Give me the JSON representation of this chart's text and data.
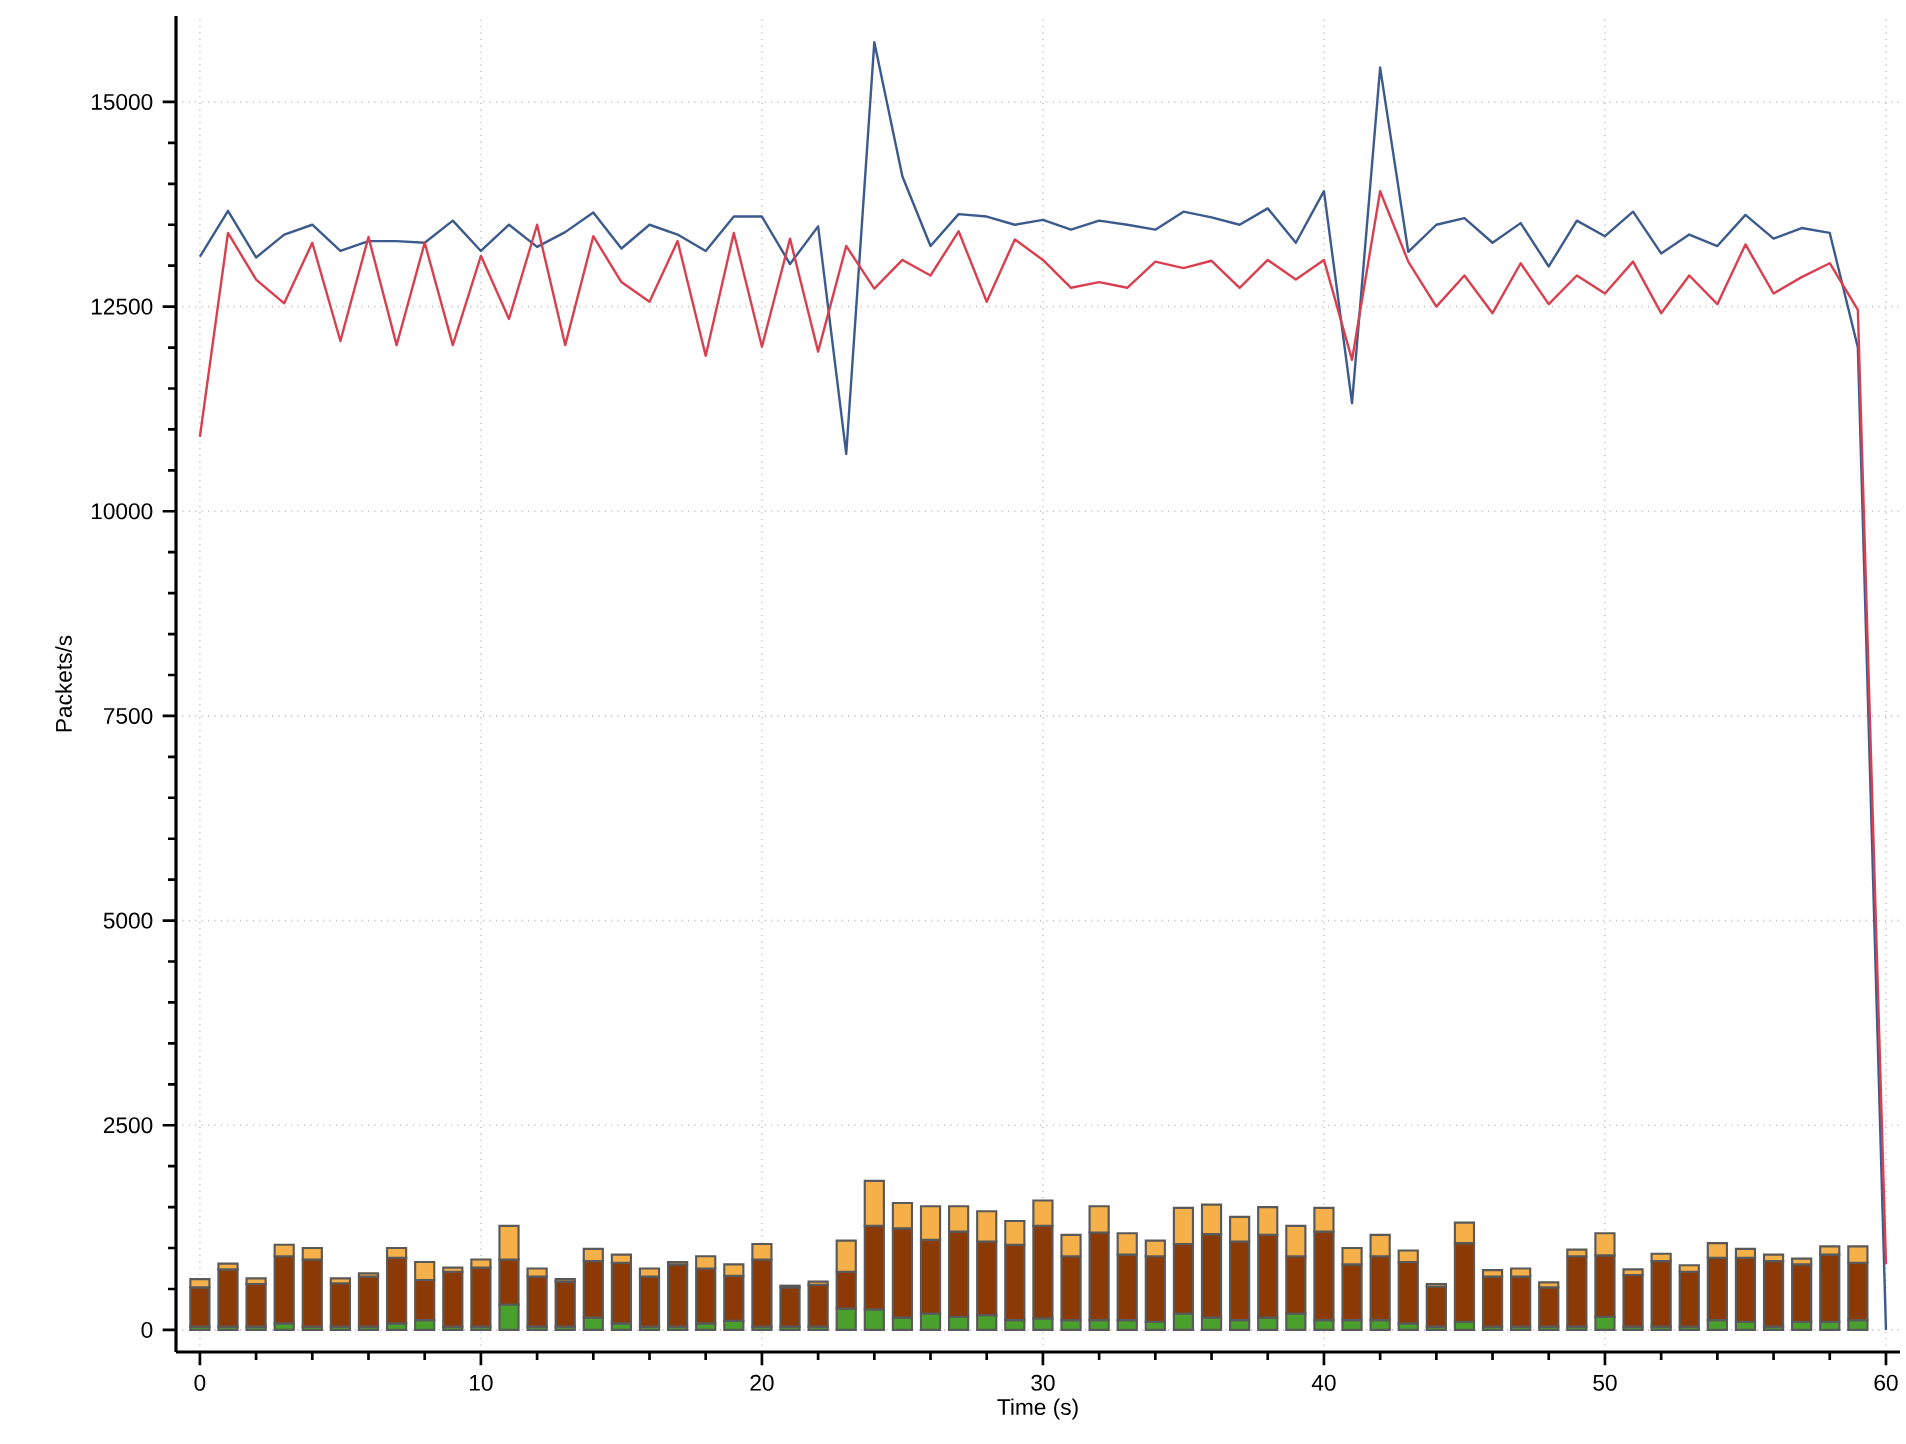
{
  "chart_data": {
    "type": "bar",
    "stacked": true,
    "xlabel": "Time (s)",
    "ylabel": "Packets/s",
    "grid": true,
    "legend": false,
    "marker": "none",
    "xlim": [
      -0.85,
      60.5
    ],
    "ylim": [
      -270,
      16050
    ],
    "xticks": [
      0,
      10,
      20,
      30,
      40,
      50,
      60
    ],
    "yticks": [
      0,
      2500,
      5000,
      7500,
      10000,
      12500,
      15000
    ],
    "x": [
      0,
      1,
      2,
      3,
      4,
      5,
      6,
      7,
      8,
      9,
      10,
      11,
      12,
      13,
      14,
      15,
      16,
      17,
      18,
      19,
      20,
      21,
      22,
      23,
      24,
      25,
      26,
      27,
      28,
      29,
      30,
      31,
      32,
      33,
      34,
      35,
      36,
      37,
      38,
      39,
      40,
      41,
      42,
      43,
      44,
      45,
      46,
      47,
      48,
      49,
      50,
      51,
      52,
      53,
      54,
      55,
      56,
      57,
      58,
      59
    ],
    "series": [
      {
        "color": "#4aa02c",
        "values": [
          40,
          40,
          40,
          80,
          40,
          40,
          40,
          80,
          120,
          40,
          40,
          310,
          40,
          40,
          150,
          80,
          40,
          40,
          80,
          110,
          40,
          40,
          40,
          260,
          250,
          150,
          200,
          160,
          180,
          120,
          140,
          120,
          120,
          120,
          100,
          200,
          150,
          120,
          150,
          200,
          120,
          120,
          120,
          80,
          40,
          100,
          40,
          40,
          40,
          40,
          160,
          40,
          40,
          40,
          120,
          100,
          40,
          100,
          100,
          120
        ]
      },
      {
        "color": "#8b3a06",
        "values": [
          480,
          700,
          520,
          820,
          820,
          530,
          610,
          800,
          490,
          670,
          720,
          550,
          610,
          550,
          690,
          740,
          610,
          760,
          670,
          550,
          820,
          480,
          510,
          450,
          1020,
          1090,
          900,
          1040,
          900,
          920,
          1130,
          780,
          1070,
          800,
          800,
          850,
          1020,
          960,
          1010,
          700,
          1080,
          680,
          780,
          750,
          490,
          960,
          610,
          610,
          480,
          860,
          750,
          630,
          800,
          670,
          760,
          780,
          800,
          700,
          820,
          700
        ]
      },
      {
        "color": "#f5b04a",
        "values": [
          100,
          70,
          70,
          140,
          140,
          60,
          40,
          120,
          220,
          50,
          100,
          410,
          100,
          30,
          150,
          100,
          100,
          30,
          150,
          140,
          190,
          20,
          40,
          380,
          550,
          310,
          410,
          310,
          370,
          290,
          310,
          260,
          320,
          260,
          190,
          440,
          360,
          300,
          340,
          370,
          290,
          200,
          260,
          140,
          30,
          250,
          80,
          100,
          60,
          80,
          270,
          70,
          90,
          80,
          180,
          110,
          80,
          70,
          100,
          200
        ]
      },
      {
        "type": "line",
        "color": "#3c5a8c",
        "x": [
          0,
          1,
          2,
          3,
          4,
          5,
          6,
          7,
          8,
          9,
          10,
          11,
          12,
          13,
          14,
          15,
          16,
          17,
          18,
          19,
          20,
          21,
          22,
          23,
          24,
          25,
          26,
          27,
          28,
          29,
          30,
          31,
          32,
          33,
          34,
          35,
          36,
          37,
          38,
          39,
          40,
          41,
          42,
          43,
          44,
          45,
          46,
          47,
          48,
          49,
          50,
          51,
          52,
          53,
          54,
          55,
          56,
          57,
          58,
          59,
          60
        ],
        "values": [
          13110,
          13670,
          13100,
          13380,
          13500,
          13180,
          13300,
          13300,
          13280,
          13550,
          13180,
          13500,
          13230,
          13410,
          13650,
          13210,
          13500,
          13380,
          13180,
          13600,
          13600,
          13020,
          13480,
          10700,
          15730,
          14090,
          13240,
          13630,
          13600,
          13500,
          13560,
          13440,
          13550,
          13500,
          13440,
          13660,
          13590,
          13500,
          13700,
          13280,
          13910,
          11320,
          15420,
          13170,
          13500,
          13580,
          13280,
          13520,
          12990,
          13550,
          13360,
          13660,
          13150,
          13380,
          13240,
          13620,
          13330,
          13460,
          13400,
          12000,
          0
        ]
      },
      {
        "type": "line",
        "color": "#d9404f",
        "x": [
          0,
          1,
          2,
          3,
          4,
          5,
          6,
          7,
          8,
          9,
          10,
          11,
          12,
          13,
          14,
          15,
          16,
          17,
          18,
          19,
          20,
          21,
          22,
          23,
          24,
          25,
          26,
          27,
          28,
          29,
          30,
          31,
          32,
          33,
          34,
          35,
          36,
          37,
          38,
          39,
          40,
          41,
          42,
          43,
          44,
          45,
          46,
          47,
          48,
          49,
          50,
          51,
          52,
          53,
          54,
          55,
          56,
          57,
          58,
          59,
          60
        ],
        "values": [
          10910,
          13400,
          12830,
          12540,
          13280,
          12080,
          13350,
          12030,
          13280,
          12030,
          13120,
          12350,
          13500,
          12030,
          13360,
          12800,
          12560,
          13300,
          11900,
          13400,
          12010,
          13330,
          11950,
          13240,
          12720,
          13070,
          12880,
          13420,
          12560,
          13320,
          13070,
          12730,
          12800,
          12730,
          13050,
          12970,
          13060,
          12730,
          13070,
          12830,
          13070,
          11850,
          13910,
          13050,
          12500,
          12880,
          12420,
          13030,
          12530,
          12880,
          12660,
          13050,
          12420,
          12880,
          12530,
          13260,
          12660,
          12860,
          13030,
          12460,
          800
        ]
      }
    ]
  }
}
